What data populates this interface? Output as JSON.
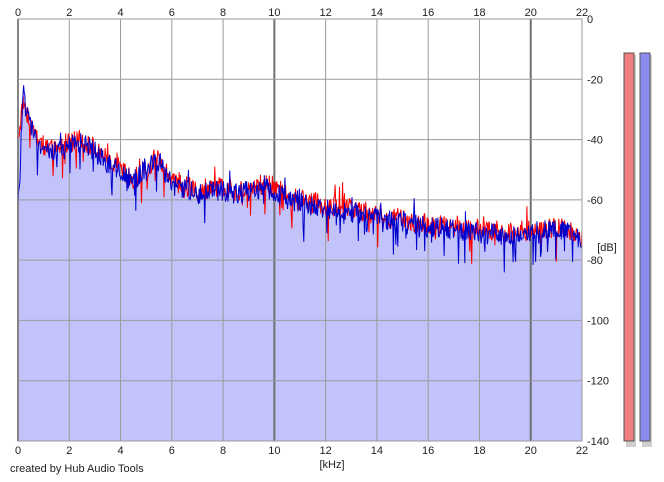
{
  "footer": {
    "credit": "created by Hub Audio Tools"
  },
  "colors": {
    "fill": "#c3c3fb",
    "channel_left": "#ff0000",
    "channel_right": "#0000cc",
    "grid": "#9a9a9a",
    "meter_left": "#f08080",
    "meter_right": "#8c8cf0"
  },
  "chart_data": {
    "type": "area",
    "title": "",
    "xlabel": "[kHz]",
    "ylabel": "[dB]",
    "xlim": [
      0,
      22
    ],
    "ylim": [
      -140,
      0
    ],
    "x_ticks": [
      "0",
      "2",
      "4",
      "6",
      "8",
      "10",
      "12",
      "14",
      "16",
      "18",
      "20",
      "22"
    ],
    "y_ticks": [
      "0",
      "-20",
      "-40",
      "-60",
      "-80",
      "-100",
      "-120",
      "-140"
    ],
    "grid": true,
    "series": [
      {
        "color": "#ff0000",
        "x": [
          0,
          0.2,
          0.5,
          1,
          1.5,
          2,
          2.5,
          3,
          3.5,
          4,
          4.5,
          5,
          5.5,
          6,
          6.5,
          7,
          7.5,
          8,
          8.5,
          9,
          9.5,
          10,
          10.5,
          11,
          11.5,
          12,
          12.5,
          13,
          13.5,
          14,
          14.5,
          15,
          15.5,
          16,
          16.5,
          17,
          17.5,
          18,
          18.5,
          19,
          19.5,
          20,
          20.5,
          21,
          21.5,
          22
        ],
        "values": [
          -40,
          -27,
          -35,
          -42,
          -44,
          -41,
          -40,
          -43,
          -46,
          -50,
          -53,
          -50,
          -46,
          -53,
          -55,
          -57,
          -56,
          -56,
          -57,
          -56,
          -55,
          -55,
          -59,
          -60,
          -61,
          -62,
          -62,
          -63,
          -64,
          -65,
          -66,
          -66,
          -68,
          -68,
          -68,
          -69,
          -70,
          -70,
          -70,
          -71,
          -71,
          -70,
          -70,
          -69,
          -70,
          -73
        ]
      },
      {
        "color": "#0000cc",
        "x": [
          0,
          0.2,
          0.5,
          1,
          1.5,
          2,
          2.5,
          3,
          3.5,
          4,
          4.5,
          5,
          5.5,
          6,
          6.5,
          7,
          7.5,
          8,
          8.5,
          9,
          9.5,
          10,
          10.5,
          11,
          11.5,
          12,
          12.5,
          13,
          13.5,
          14,
          14.5,
          15,
          15.5,
          16,
          16.5,
          17,
          17.5,
          18,
          18.5,
          19,
          19.5,
          20,
          20.5,
          21,
          21.5,
          22
        ],
        "values": [
          -65,
          -26,
          -36,
          -44,
          -45,
          -42,
          -41,
          -44,
          -48,
          -51,
          -54,
          -49,
          -47,
          -55,
          -56,
          -58,
          -57,
          -57,
          -58,
          -57,
          -56,
          -57,
          -60,
          -61,
          -62,
          -63,
          -63,
          -64,
          -65,
          -66,
          -67,
          -67,
          -68,
          -69,
          -69,
          -70,
          -70,
          -71,
          -71,
          -72,
          -71,
          -71,
          -70,
          -70,
          -71,
          -74
        ]
      }
    ]
  },
  "meters": [
    {
      "channel": "left",
      "color": "#f08080",
      "level": 1.0
    },
    {
      "channel": "right",
      "color": "#8c8cf0",
      "level": 1.0
    }
  ]
}
